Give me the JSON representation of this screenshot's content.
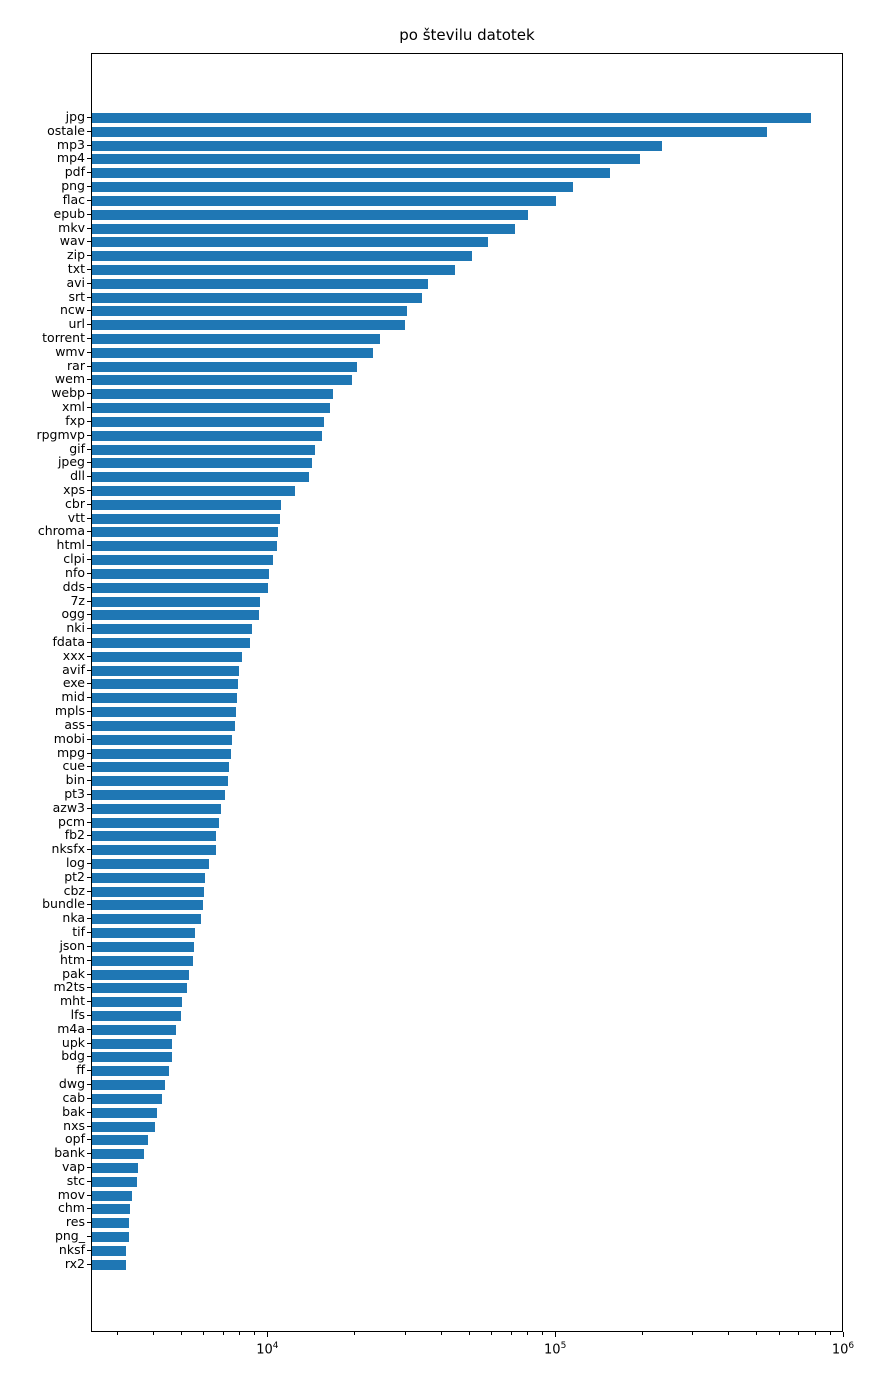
{
  "chart_data": {
    "type": "bar",
    "orientation": "horizontal",
    "title": "po številu datotek",
    "x_scale": "log",
    "xlim": [
      2440,
      1000000
    ],
    "grid": false,
    "legend": "none",
    "bar_color": "#1f77b4",
    "x_major_ticks": [
      {
        "value": 10000,
        "base": "10",
        "exponent": "4"
      },
      {
        "value": 100000,
        "base": "10",
        "exponent": "5"
      },
      {
        "value": 1000000,
        "base": "10",
        "exponent": "6"
      }
    ],
    "x_minor_tick_decades": [
      1000,
      10000,
      100000
    ],
    "categories": [
      "jpg",
      "ostale",
      "mp3",
      "mp4",
      "pdf",
      "png",
      "flac",
      "epub",
      "mkv",
      "wav",
      "zip",
      "txt",
      "avi",
      "srt",
      "ncw",
      "url",
      "torrent",
      "wmv",
      "rar",
      "wem",
      "webp",
      "xml",
      "fxp",
      "rpgmvp",
      "gif",
      "jpeg",
      "dll",
      "xps",
      "cbr",
      "vtt",
      "chroma",
      "html",
      "clpi",
      "nfo",
      "dds",
      "7z",
      "ogg",
      "nki",
      "fdata",
      "xxx",
      "avif",
      "exe",
      "mid",
      "mpls",
      "ass",
      "mobi",
      "mpg",
      "cue",
      "bin",
      "pt3",
      "azw3",
      "pcm",
      "fb2",
      "nksfx",
      "log",
      "pt2",
      "cbz",
      "bundle",
      "nka",
      "tif",
      "json",
      "htm",
      "pak",
      "m2ts",
      "mht",
      "lfs",
      "m4a",
      "upk",
      "bdg",
      "ff",
      "dwg",
      "cab",
      "bak",
      "nxs",
      "opf",
      "bank",
      "vap",
      "stc",
      "mov",
      "chm",
      "res",
      "png_",
      "nksf",
      "rx2"
    ],
    "values": [
      765000,
      542000,
      234000,
      195000,
      154000,
      114000,
      100000,
      80000,
      72000,
      58000,
      51000,
      44500,
      35900,
      34200,
      30300,
      29800,
      24400,
      23100,
      20300,
      19500,
      16800,
      16400,
      15600,
      15400,
      14500,
      14200,
      13800,
      12400,
      11100,
      11000,
      10800,
      10700,
      10400,
      10050,
      9960,
      9370,
      9290,
      8760,
      8630,
      8070,
      7880,
      7850,
      7800,
      7700,
      7650,
      7480,
      7400,
      7310,
      7270,
      7060,
      6870,
      6730,
      6580,
      6570,
      6210,
      6010,
      5960,
      5920,
      5840,
      5570,
      5520,
      5460,
      5300,
      5210,
      5000,
      4990,
      4770,
      4640,
      4630,
      4510,
      4380,
      4260,
      4100,
      4040,
      3820,
      3690,
      3520,
      3490,
      3350,
      3300,
      3290,
      3280,
      3210,
      3190
    ]
  }
}
